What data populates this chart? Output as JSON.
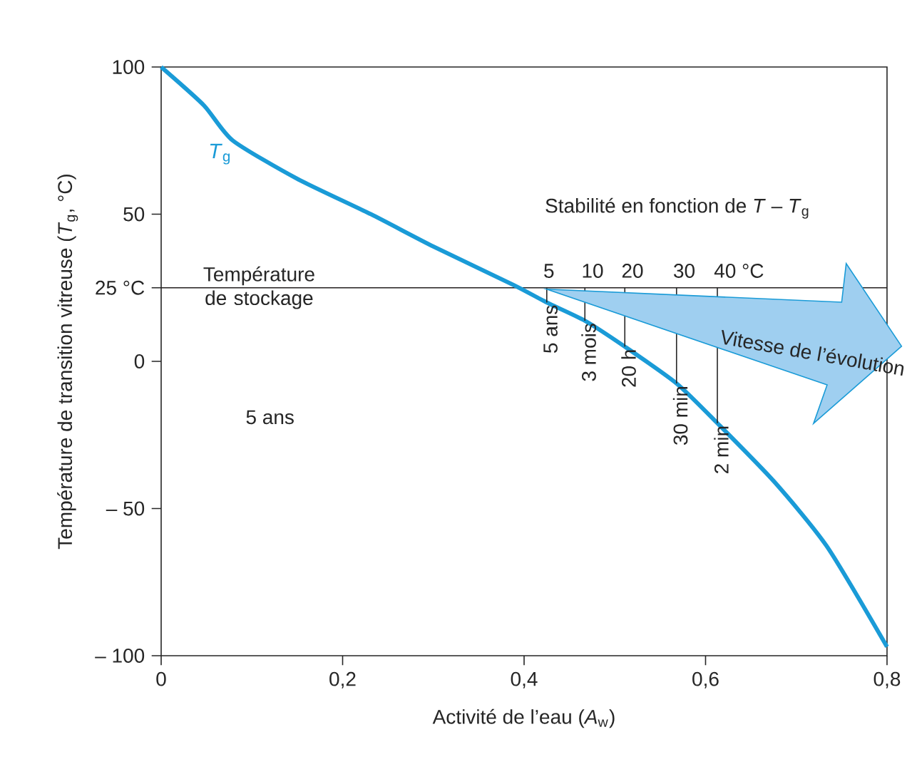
{
  "chart_data": {
    "type": "line",
    "xlabel": "Activité de l’eau (*A*$_{w}$)",
    "ylabel": "Température de transition vitreuse (*T*$_{g}$, °C)",
    "xlim": [
      0,
      0.8
    ],
    "ylim": [
      -100,
      100
    ],
    "xticks": [
      0,
      {
        "value": 0.2,
        "label": "0,2"
      },
      {
        "value": 0.4,
        "label": "0,4"
      },
      {
        "value": 0.6,
        "label": "0,6"
      },
      {
        "value": 0.8,
        "label": "0,8"
      }
    ],
    "yticks": [
      {
        "value": -100,
        "label": "– 100"
      },
      {
        "value": -50,
        "label": "– 50"
      },
      0,
      {
        "value": 25,
        "label": "25 °C"
      },
      50,
      100
    ],
    "grid": false,
    "marker": "none",
    "line_style": "solid",
    "series": [
      {
        "name": "*T*$_{g}$",
        "color": "#1a9bd7",
        "x": [
          0,
          0.047,
          0.079,
          0.15,
          0.231,
          0.3,
          0.388,
          0.425,
          0.467,
          0.511,
          0.568,
          0.613,
          0.676,
          0.734,
          0.8
        ],
        "values": [
          100,
          87,
          75,
          62,
          50,
          39,
          26,
          20,
          13.8,
          5,
          -7.5,
          -21,
          -41,
          -63,
          -97
        ]
      }
    ],
    "ref_lines": [
      {
        "axis": "y",
        "value": 25,
        "label": "Température de stockage",
        "color": "#231f20"
      }
    ],
    "annotations": [
      "Stabilité en fonction de *T* – *T*$_{g}$",
      "5 ans",
      "Vitesse de l’évolution",
      {
        "text": "5",
        "x": 0.425,
        "y": 25
      },
      {
        "text": "10",
        "x": 0.467,
        "y": 25
      },
      {
        "text": "20",
        "x": 0.511,
        "y": 25
      },
      {
        "text": "30",
        "x": 0.568,
        "y": 25
      },
      {
        "text": "40 °C",
        "x": 0.613,
        "y": 25
      },
      {
        "text": "5 ans",
        "x": 0.425,
        "y": 20
      },
      {
        "text": "3 mois",
        "x": 0.467,
        "y": 13.8
      },
      {
        "text": "20 h",
        "x": 0.511,
        "y": 5
      },
      {
        "text": "30 min",
        "x": 0.568,
        "y": -7.5
      },
      {
        "text": "2 min",
        "x": 0.613,
        "y": -21
      }
    ]
  }
}
